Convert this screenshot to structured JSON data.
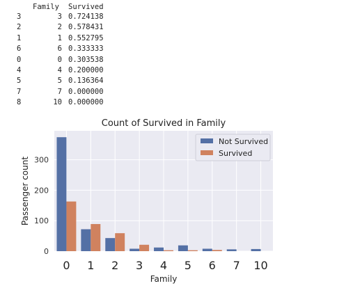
{
  "dataframe": {
    "columns": [
      "Family",
      "Survived"
    ],
    "rows": [
      {
        "index": "3",
        "family": "3",
        "survived": "0.724138"
      },
      {
        "index": "2",
        "family": "2",
        "survived": "0.578431"
      },
      {
        "index": "1",
        "family": "1",
        "survived": "0.552795"
      },
      {
        "index": "6",
        "family": "6",
        "survived": "0.333333"
      },
      {
        "index": "0",
        "family": "0",
        "survived": "0.303538"
      },
      {
        "index": "4",
        "family": "4",
        "survived": "0.200000"
      },
      {
        "index": "5",
        "family": "5",
        "survived": "0.136364"
      },
      {
        "index": "7",
        "family": "7",
        "survived": "0.000000"
      },
      {
        "index": "8",
        "family": "10",
        "survived": "0.000000"
      }
    ]
  },
  "chart_data": {
    "type": "bar",
    "title": "Count of Survived in Family",
    "xlabel": "Family",
    "ylabel": "Passenger count",
    "categories": [
      "0",
      "1",
      "2",
      "3",
      "4",
      "5",
      "6",
      "7",
      "10"
    ],
    "yticks": [
      "0",
      "100",
      "200",
      "300"
    ],
    "ylim": [
      0,
      395
    ],
    "grid": true,
    "legend_position": "top-right",
    "series": [
      {
        "name": "Not Survived",
        "color": "#5470a5",
        "values": [
          374,
          72,
          43,
          8,
          12,
          19,
          8,
          6,
          7
        ]
      },
      {
        "name": "Survived",
        "color": "#d0825f",
        "values": [
          163,
          89,
          59,
          21,
          3,
          3,
          4,
          0,
          0
        ]
      }
    ],
    "background": "#eaeaf2"
  }
}
